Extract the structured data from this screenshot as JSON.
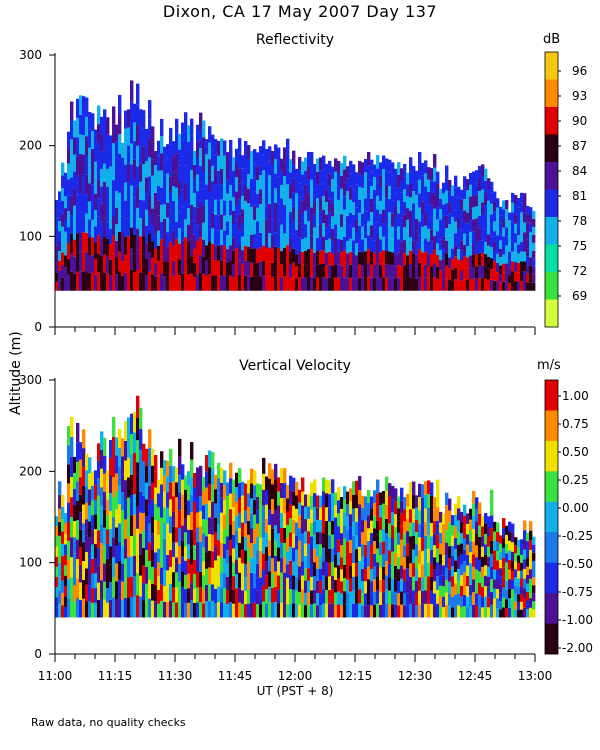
{
  "title": "Dixon, CA 17 May 2007  Day 137",
  "y_axis_label": "Altitude (m)",
  "x_axis_label": "UT  (PST + 8)",
  "footer": "Raw data, no quality checks",
  "chart_data": [
    {
      "type": "heatmap",
      "title": "Reflectivity",
      "units": "dB",
      "x_ticks": [
        "11:00",
        "11:15",
        "11:30",
        "11:45",
        "12:00",
        "12:15",
        "12:30",
        "12:45",
        "13:00"
      ],
      "y_ticks": [
        "0",
        "100",
        "200",
        "300"
      ],
      "ylim": [
        0,
        300
      ],
      "colorbar_labels": [
        "96",
        "93",
        "90",
        "87",
        "84",
        "81",
        "78",
        "75",
        "72",
        "69"
      ],
      "colorbar_colors": [
        "#f7c80f",
        "#ff8a00",
        "#e00000",
        "#2a0012",
        "#4b1196",
        "#1a2ae8",
        "#10b0e8",
        "#00e0a0",
        "#38e040",
        "#d2ff3c"
      ],
      "base_altitude": 40
    },
    {
      "type": "heatmap",
      "title": "Vertical Velocity",
      "units": "m/s",
      "x_ticks": [
        "11:00",
        "11:15",
        "11:30",
        "11:45",
        "12:00",
        "12:15",
        "12:30",
        "12:45",
        "13:00"
      ],
      "y_ticks": [
        "0",
        "100",
        "200",
        "300"
      ],
      "ylim": [
        0,
        300
      ],
      "colorbar_labels": [
        "1.00",
        "0.75",
        "0.50",
        "0.25",
        "0.00",
        "-0.25",
        "-0.50",
        "-0.75",
        "-1.00",
        "-2.00"
      ],
      "colorbar_colors": [
        "#e00000",
        "#ff8a00",
        "#f0e000",
        "#38e040",
        "#10b0e8",
        "#1a7ae8",
        "#1a2ae8",
        "#4b1196",
        "#2a0012"
      ],
      "base_altitude": 40
    }
  ]
}
